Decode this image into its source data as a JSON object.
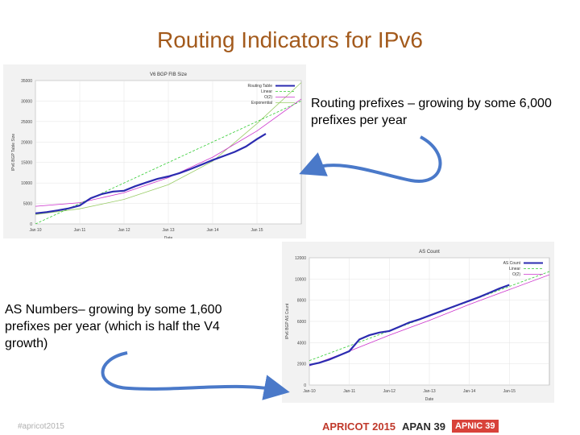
{
  "title": "Routing Indicators for IPv6",
  "note_prefixes": "Routing prefixes – growing by some 6,000 prefixes per year",
  "note_as": "AS Numbers– growing by some 1,600 prefixes per year (which is half the V4 growth)",
  "footer": {
    "hashtag": "#apricot2015",
    "logo1": "APRICOT 2015",
    "logo2": "APAN 39",
    "logo3": "APNIC 39"
  },
  "colors": {
    "title": "#a35a1c",
    "data_line": "#2b2bb0",
    "linear": "#33cc33",
    "poly": "#cc33cc",
    "exp": "#99cc66",
    "arrow": "#4a79c9"
  },
  "chart_data": [
    {
      "type": "line",
      "title": "V6 BGP FIB Size",
      "xlabel": "Date",
      "ylabel": "IPv6 BGP Table Size",
      "x_ticks": [
        "Jan 10",
        "Jan 11",
        "Jan 12",
        "Jan 13",
        "Jan 14",
        "Jan 15"
      ],
      "y_ticks": [
        "0",
        "5000",
        "10000",
        "15000",
        "20000",
        "25000",
        "30000",
        "35000"
      ],
      "xlim": [
        2010.0,
        2016.0
      ],
      "ylim": [
        0,
        35000
      ],
      "legend_position": "top-right",
      "grid": true,
      "series": [
        {
          "name": "Routing Table",
          "x": [
            2010.0,
            2010.25,
            2010.5,
            2010.75,
            2011.0,
            2011.25,
            2011.5,
            2011.75,
            2012.0,
            2012.25,
            2012.5,
            2012.75,
            2013.0,
            2013.25,
            2013.5,
            2013.75,
            2014.0,
            2014.25,
            2014.5,
            2014.75,
            2015.0,
            2015.2
          ],
          "y": [
            2600,
            2900,
            3300,
            3800,
            4500,
            6300,
            7300,
            7900,
            8100,
            9200,
            10100,
            11000,
            11600,
            12400,
            13400,
            14500,
            15600,
            16600,
            17600,
            18900,
            20700,
            22000
          ]
        },
        {
          "name": "Linear",
          "x": [
            2010.0,
            2016.0
          ],
          "y": [
            -3000,
            30000
          ]
        },
        {
          "name": "O(2)",
          "x": [
            2010.0,
            2011.0,
            2012.0,
            2013.0,
            2014.0,
            2015.0,
            2016.0
          ],
          "y": [
            4300,
            5200,
            7600,
            11300,
            16300,
            22700,
            30500
          ]
        },
        {
          "name": "Exponential",
          "x": [
            2010.0,
            2011.0,
            2012.0,
            2013.0,
            2014.0,
            2015.0,
            2016.0
          ],
          "y": [
            2300,
            3700,
            6000,
            9600,
            15300,
            24500,
            34500
          ]
        }
      ]
    },
    {
      "type": "line",
      "title": "AS Count",
      "xlabel": "Date",
      "ylabel": "IPv6 BGP AS Count",
      "x_ticks": [
        "Jan-10",
        "Jan-11",
        "Jan-12",
        "Jan-13",
        "Jan-14",
        "Jan-15"
      ],
      "y_ticks": [
        "0",
        "2000",
        "4000",
        "6000",
        "8000",
        "10000",
        "12000"
      ],
      "xlim": [
        2010.0,
        2016.0
      ],
      "ylim": [
        0,
        12000
      ],
      "legend_position": "top-right",
      "grid": true,
      "series": [
        {
          "name": "AS Count",
          "x": [
            2010.0,
            2010.25,
            2010.5,
            2010.75,
            2011.0,
            2011.25,
            2011.5,
            2011.75,
            2012.0,
            2012.25,
            2012.5,
            2012.75,
            2013.0,
            2013.25,
            2013.5,
            2013.75,
            2014.0,
            2014.25,
            2014.5,
            2014.75,
            2015.0
          ],
          "y": [
            1900,
            2100,
            2400,
            2800,
            3200,
            4300,
            4700,
            4950,
            5100,
            5500,
            5900,
            6200,
            6550,
            6900,
            7250,
            7600,
            7950,
            8300,
            8700,
            9100,
            9450
          ]
        },
        {
          "name": "Linear",
          "x": [
            2010.0,
            2016.0
          ],
          "y": [
            2300,
            10700
          ]
        },
        {
          "name": "O(2)",
          "x": [
            2010.0,
            2011.0,
            2012.0,
            2013.0,
            2014.0,
            2015.0,
            2016.0
          ],
          "y": [
            1800,
            3200,
            4700,
            6100,
            7600,
            9000,
            10400
          ]
        }
      ]
    }
  ]
}
